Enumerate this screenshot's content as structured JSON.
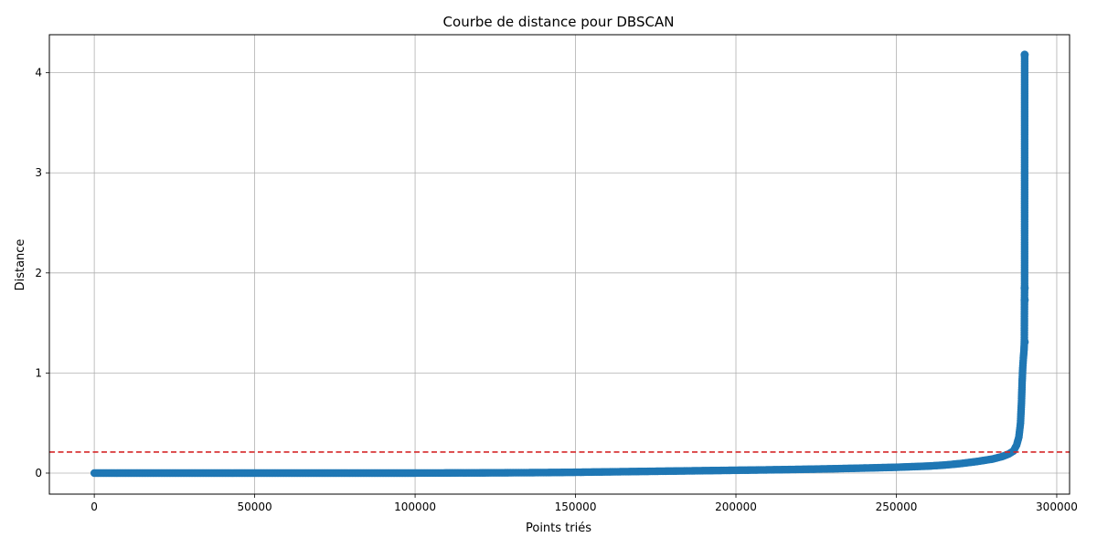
{
  "chart_data": {
    "type": "line",
    "title": "Courbe de distance pour DBSCAN",
    "xlabel": "Points triés",
    "ylabel": "Distance",
    "xlim": [
      -14000,
      304000
    ],
    "ylim": [
      -0.21,
      4.38
    ],
    "x_ticks": [
      0,
      50000,
      100000,
      150000,
      200000,
      250000,
      300000
    ],
    "x_tick_labels": [
      "0",
      "50000",
      "100000",
      "150000",
      "200000",
      "250000",
      "300000"
    ],
    "y_ticks": [
      0,
      1,
      2,
      3,
      4
    ],
    "y_tick_labels": [
      "0",
      "1",
      "2",
      "3",
      "4"
    ],
    "grid": true,
    "series": [
      {
        "color": "#1f77b4",
        "marker": "circle",
        "x": [
          0,
          20000,
          40000,
          60000,
          80000,
          100000,
          120000,
          140000,
          150000,
          160000,
          170000,
          180000,
          190000,
          200000,
          210000,
          220000,
          230000,
          240000,
          250000,
          260000,
          265000,
          270000,
          275000,
          280000,
          283000,
          285000,
          286500,
          287500,
          288200,
          288700,
          289000,
          289200,
          289400,
          289600,
          289800,
          289900,
          289950,
          289980,
          290000
        ],
        "y": [
          0.0,
          0.0,
          0.0,
          0.0,
          0.0,
          0.0,
          0.002,
          0.005,
          0.008,
          0.012,
          0.016,
          0.02,
          0.024,
          0.028,
          0.032,
          0.037,
          0.043,
          0.05,
          0.058,
          0.07,
          0.08,
          0.095,
          0.115,
          0.14,
          0.165,
          0.19,
          0.22,
          0.28,
          0.36,
          0.5,
          0.7,
          0.9,
          1.05,
          1.15,
          1.23,
          1.31,
          1.73,
          1.85,
          4.18
        ]
      }
    ],
    "threshold": {
      "y": 0.21,
      "color": "#d62728",
      "style": "dashed"
    }
  }
}
